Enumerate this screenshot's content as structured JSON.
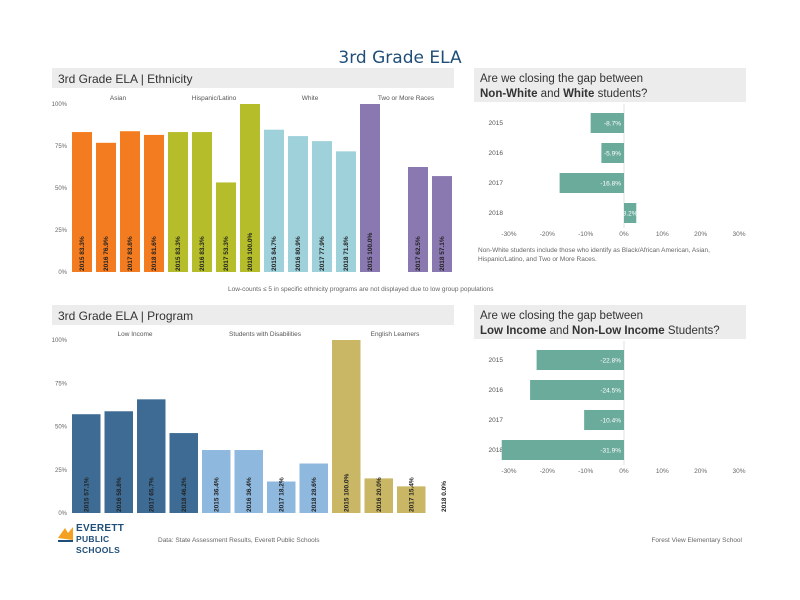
{
  "page": {
    "title": "3rd Grade ELA",
    "note_middle": "Low-counts ≤ 5 in specific ethnicity programs are not displayed due to low group populations",
    "note_gap1": "Non-White students include those who identify as Black/African American, Asian, Hispanic/Latino, and Two or More Races.",
    "footer_source": "Data: State Assessment Results, Everett Public Schools",
    "footer_school": "Forest View Elementary School",
    "logo_line1": "EVERETT",
    "logo_line2": "PUBLIC SCHOOLS"
  },
  "colors": {
    "asian": "#f47c20",
    "hispanic": "#b5bd2a",
    "white": "#9ed1da",
    "two_or_more": "#8a78b0",
    "low_income": "#3d6b94",
    "disabilities": "#8fb8de",
    "ell": "#c9b765",
    "gap": "#6aab9c"
  },
  "chart_data": [
    {
      "type": "bar",
      "title": "3rd Grade ELA | Ethnicity",
      "ylim": [
        0,
        100
      ],
      "yticks": [
        "0%",
        "25%",
        "50%",
        "75%",
        "100%"
      ],
      "groups": [
        {
          "name": "Asian",
          "color_key": "asian",
          "bars": [
            {
              "year": "2015",
              "value": 83.3,
              "label": "83.3%"
            },
            {
              "year": "2016",
              "value": 76.9,
              "label": "76.9%"
            },
            {
              "year": "2017",
              "value": 83.8,
              "label": "83.8%"
            },
            {
              "year": "2018",
              "value": 81.6,
              "label": "81.6%"
            }
          ]
        },
        {
          "name": "Hispanic/Latino",
          "color_key": "hispanic",
          "bars": [
            {
              "year": "2015",
              "value": 83.3,
              "label": "83.3%"
            },
            {
              "year": "2016",
              "value": 83.3,
              "label": "83.3%"
            },
            {
              "year": "2017",
              "value": 53.3,
              "label": "53.3%"
            },
            {
              "year": "2018",
              "value": 100,
              "label": "100.0%"
            }
          ]
        },
        {
          "name": "White",
          "color_key": "white",
          "bars": [
            {
              "year": "2015",
              "value": 84.7,
              "label": "84.7%"
            },
            {
              "year": "2016",
              "value": 80.9,
              "label": "80.9%"
            },
            {
              "year": "2017",
              "value": 77.9,
              "label": "77.9%"
            },
            {
              "year": "2018",
              "value": 71.8,
              "label": "71.8%"
            }
          ]
        },
        {
          "name": "Two or More Races",
          "color_key": "two_or_more",
          "bars": [
            {
              "year": "2015",
              "value": 100,
              "label": "100.0%"
            },
            {
              "year": "2017",
              "value": 62.5,
              "label": "62.5%"
            },
            {
              "year": "2018",
              "value": 57.1,
              "label": "57.1%"
            }
          ]
        }
      ]
    },
    {
      "type": "bar",
      "title": "3rd Grade ELA | Program",
      "ylim": [
        0,
        100
      ],
      "yticks": [
        "0%",
        "25%",
        "50%",
        "75%",
        "100%"
      ],
      "groups": [
        {
          "name": "Low Income",
          "color_key": "low_income",
          "bars": [
            {
              "year": "2015",
              "value": 57.1,
              "label": "57.1%"
            },
            {
              "year": "2016",
              "value": 58.8,
              "label": "58.8%"
            },
            {
              "year": "2017",
              "value": 65.7,
              "label": "65.7%"
            },
            {
              "year": "2018",
              "value": 46.2,
              "label": "46.2%"
            }
          ]
        },
        {
          "name": "Students with Disabilities",
          "color_key": "disabilities",
          "bars": [
            {
              "year": "2015",
              "value": 36.4,
              "label": "36.4%"
            },
            {
              "year": "2016",
              "value": 36.4,
              "label": "36.4%"
            },
            {
              "year": "2017",
              "value": 18.2,
              "label": "18.2%"
            },
            {
              "year": "2018",
              "value": 28.6,
              "label": "28.6%"
            }
          ]
        },
        {
          "name": "English Learners",
          "color_key": "ell",
          "bars": [
            {
              "year": "2015",
              "value": 100,
              "label": "100.0%"
            },
            {
              "year": "2016",
              "value": 20.0,
              "label": "20.0%"
            },
            {
              "year": "2017",
              "value": 15.4,
              "label": "15.4%"
            },
            {
              "year": "2018",
              "value": 0.0,
              "label": "0.0%"
            }
          ]
        }
      ]
    },
    {
      "type": "bar",
      "orientation": "horizontal",
      "title": "Are we closing the gap between Non-White and White students?",
      "title_parts": [
        "Are we closing the gap between",
        "Non-White",
        " and ",
        "White",
        " students?"
      ],
      "xlim": [
        -30,
        30
      ],
      "xticks": [
        "-30%",
        "-20%",
        "-10%",
        "0%",
        "10%",
        "20%",
        "30%"
      ],
      "categories": [
        "2015",
        "2016",
        "2017",
        "2018"
      ],
      "values": [
        -8.7,
        -5.9,
        -16.8,
        3.2
      ],
      "labels": [
        "-8.7%",
        "-5.9%",
        "-16.8%",
        "3.2%"
      ]
    },
    {
      "type": "bar",
      "orientation": "horizontal",
      "title": "Are we closing the gap between Low Income and Non-Low Income Students?",
      "title_parts": [
        "Are we closing the gap between",
        "Low Income",
        " and ",
        "Non-Low Income",
        " Students?"
      ],
      "xlim": [
        -30,
        30
      ],
      "xticks": [
        "-30%",
        "-20%",
        "-10%",
        "0%",
        "10%",
        "20%",
        "30%"
      ],
      "categories": [
        "2015",
        "2016",
        "2017",
        "2018"
      ],
      "values": [
        -22.8,
        -24.5,
        -10.4,
        -31.9
      ],
      "labels": [
        "-22.8%",
        "-24.5%",
        "-10.4%",
        "-31.9%"
      ]
    }
  ]
}
